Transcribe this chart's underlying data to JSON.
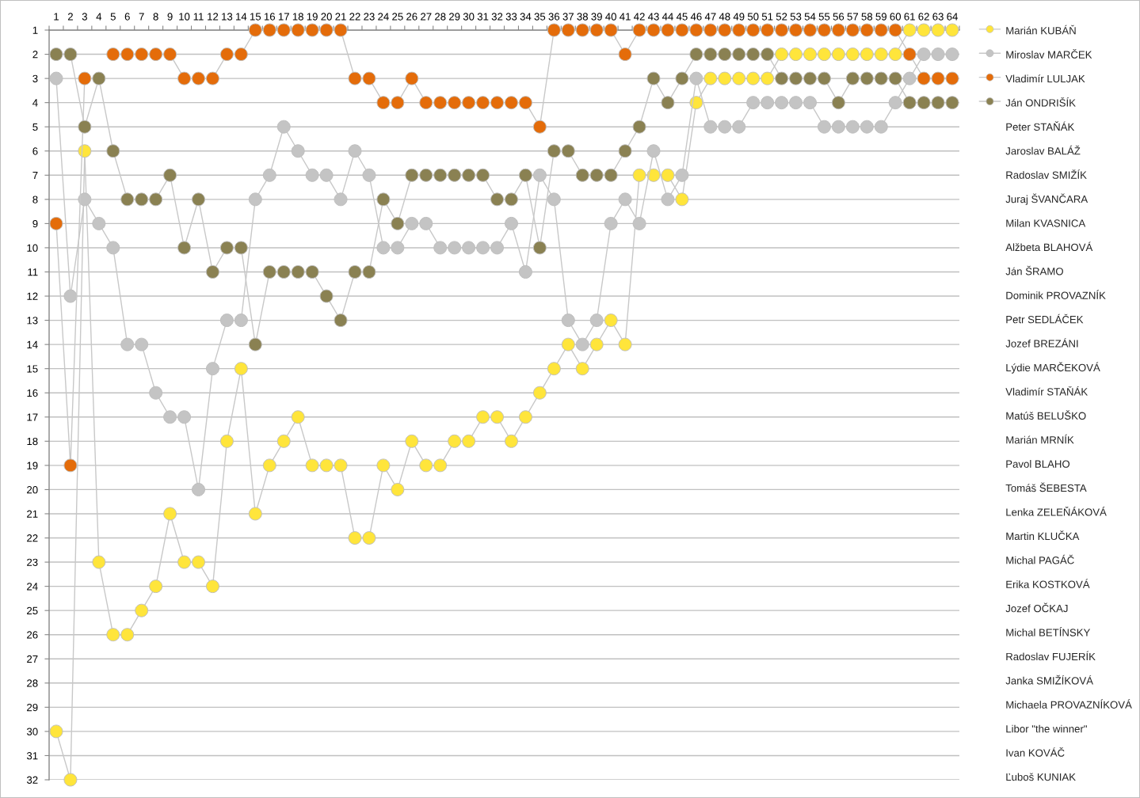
{
  "chart_data": {
    "type": "line",
    "categories": [
      "1",
      "2",
      "3",
      "4",
      "5",
      "6",
      "7",
      "8",
      "9",
      "10",
      "11",
      "12",
      "13",
      "14",
      "15",
      "16",
      "17",
      "18",
      "19",
      "20",
      "21",
      "22",
      "23",
      "24",
      "25",
      "26",
      "27",
      "28",
      "29",
      "30",
      "31",
      "32",
      "33",
      "34",
      "35",
      "36",
      "37",
      "38",
      "39",
      "40",
      "41",
      "42",
      "43",
      "44",
      "45",
      "46",
      "47",
      "48",
      "49",
      "50",
      "51",
      "52",
      "53",
      "54",
      "55",
      "56",
      "57",
      "58",
      "59",
      "60",
      "61",
      "62",
      "63",
      "64"
    ],
    "series": [
      {
        "name": "Marián KUBÁŇ",
        "color": "#ffe53b",
        "values": [
          30,
          32,
          6,
          23,
          26,
          26,
          25,
          24,
          21,
          23,
          23,
          24,
          18,
          15,
          21,
          19,
          18,
          17,
          19,
          19,
          19,
          22,
          22,
          19,
          20,
          18,
          19,
          19,
          18,
          18,
          17,
          17,
          18,
          17,
          16,
          15,
          14,
          15,
          14,
          13,
          14,
          7,
          7,
          7,
          8,
          4,
          3,
          3,
          3,
          3,
          3,
          2,
          2,
          2,
          2,
          2,
          2,
          2,
          2,
          2,
          1,
          1,
          1,
          1
        ]
      },
      {
        "name": "Miroslav MARČEK",
        "color": "#c4c4c4",
        "values": [
          3,
          12,
          8,
          9,
          10,
          14,
          14,
          16,
          17,
          17,
          20,
          15,
          13,
          13,
          8,
          7,
          5,
          6,
          7,
          7,
          8,
          6,
          7,
          10,
          10,
          9,
          9,
          10,
          10,
          10,
          10,
          10,
          9,
          11,
          7,
          8,
          13,
          14,
          13,
          9,
          8,
          9,
          6,
          8,
          7,
          3,
          5,
          5,
          5,
          4,
          4,
          4,
          4,
          4,
          5,
          5,
          5,
          5,
          5,
          4,
          3,
          2,
          2,
          2
        ]
      },
      {
        "name": "Vladimír LULJAK",
        "color": "#e46c0a",
        "values": [
          9,
          19,
          3,
          null,
          2,
          2,
          2,
          2,
          2,
          3,
          3,
          3,
          2,
          2,
          1,
          1,
          1,
          1,
          1,
          1,
          1,
          3,
          3,
          4,
          4,
          3,
          4,
          4,
          4,
          4,
          4,
          4,
          4,
          4,
          5,
          1,
          1,
          1,
          1,
          1,
          2,
          1,
          1,
          1,
          1,
          1,
          1,
          1,
          1,
          1,
          1,
          1,
          1,
          1,
          1,
          1,
          1,
          1,
          1,
          1,
          2,
          3,
          3,
          3
        ]
      },
      {
        "name": "Ján ONDRIŠÍK",
        "color": "#8a8152",
        "values": [
          2,
          2,
          5,
          3,
          6,
          8,
          8,
          8,
          7,
          10,
          8,
          11,
          10,
          10,
          14,
          11,
          11,
          11,
          11,
          12,
          13,
          11,
          11,
          8,
          9,
          7,
          7,
          7,
          7,
          7,
          7,
          8,
          8,
          7,
          10,
          6,
          6,
          7,
          7,
          7,
          6,
          5,
          3,
          4,
          3,
          2,
          2,
          2,
          2,
          2,
          2,
          3,
          3,
          3,
          3,
          4,
          3,
          3,
          3,
          3,
          4,
          4,
          4,
          4
        ]
      }
    ],
    "ylim": [
      32,
      1
    ],
    "yticks": [
      1,
      2,
      3,
      4,
      5,
      6,
      7,
      8,
      9,
      10,
      11,
      12,
      13,
      14,
      15,
      16,
      17,
      18,
      19,
      20,
      21,
      22,
      23,
      24,
      25,
      26,
      27,
      28,
      29,
      30,
      31,
      32
    ],
    "grid": "y",
    "legend": "right",
    "marker": "circle",
    "line_style": "solid",
    "annotations": [
      "Peter STAŇÁK",
      "Jaroslav BALÁŽ",
      "Radoslav SMIŽÍK",
      "Juraj ŠVANČARA",
      "Milan KVASNICA",
      "Alžbeta BLAHOVÁ",
      "Ján ŠRAMO",
      "Dominik PROVAZNÍK",
      "Petr SEDLÁČEK",
      "Jozef BREZÁNI",
      "Lýdie MARČEKOVÁ",
      "Vladimír STAŇÁK",
      "Matúš BELUŠKO",
      "Marián MRNÍK",
      "Pavol BLAHO",
      "Tomáš ŠEBESTA",
      "Lenka ZELEŇÁKOVÁ",
      "Martin KLUČKA",
      "Michal PAGÁČ",
      "Erika KOSTKOVÁ",
      "Jozef OČKAJ",
      "Michal BETÍNSKY",
      "Radoslav FUJERÍK",
      "Janka SMIŽÍKOVÁ",
      "Michaela PROVAZNÍKOVÁ",
      "Libor \"the winner\"",
      "Ivan KOVÁČ",
      "Ľuboš KUNIAK"
    ]
  }
}
